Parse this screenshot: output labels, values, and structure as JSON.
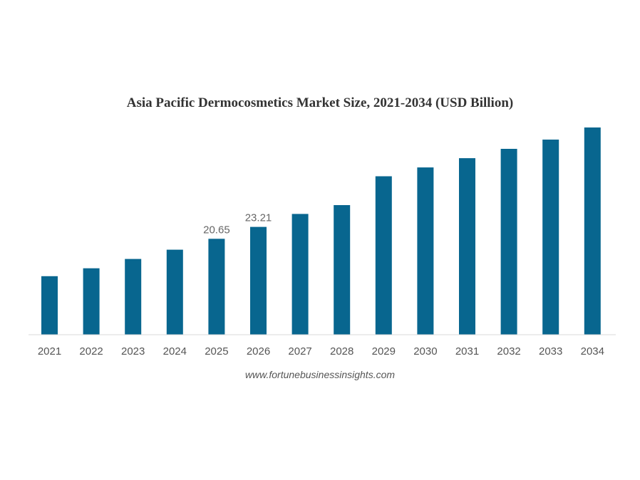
{
  "chart_data": {
    "type": "bar",
    "title": "Asia Pacific Dermocosmetics Market Size, 2021-2034 (USD Billion)",
    "categories": [
      "2021",
      "2022",
      "2023",
      "2024",
      "2025",
      "2026",
      "2027",
      "2028",
      "2029",
      "2030",
      "2031",
      "2032",
      "2033",
      "2034"
    ],
    "values": [
      12.6,
      14.3,
      16.3,
      18.3,
      20.65,
      23.21,
      26.0,
      27.9,
      34.1,
      36.0,
      38.0,
      40.0,
      42.0,
      44.6
    ],
    "data_labels": [
      {
        "category": "2025",
        "text": "20.65"
      },
      {
        "category": "2026",
        "text": "23.21"
      }
    ],
    "xlabel": "",
    "ylabel": "",
    "ylim": [
      0,
      45
    ],
    "grid": false,
    "bar_color": "#08668f",
    "baseline_color": "#d9d9d9"
  },
  "source": "www.fortunebusinessinsights.com"
}
